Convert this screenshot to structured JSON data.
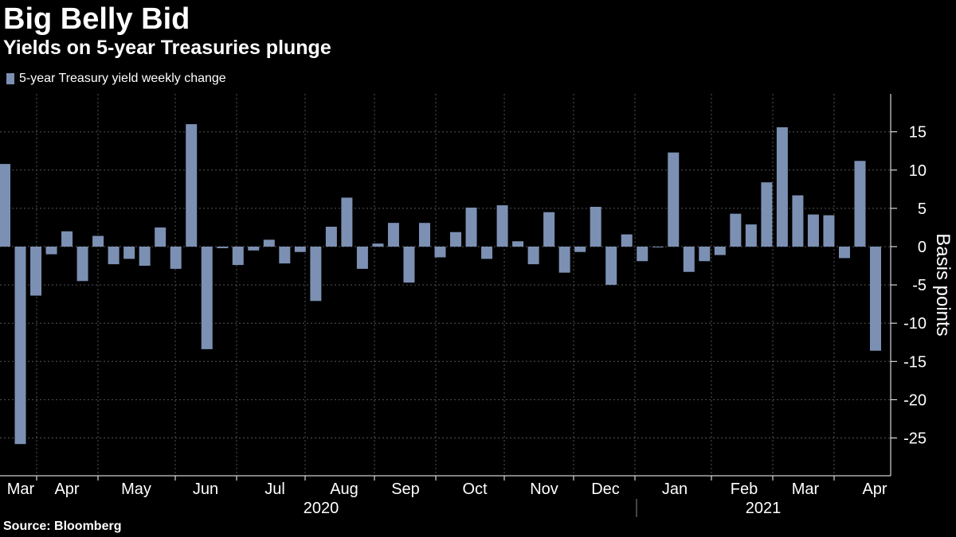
{
  "title": "Big Belly Bid",
  "subtitle": "Yields on 5-year Treasuries plunge",
  "source": "Source: Bloomberg",
  "colors": {
    "bar": "#7c90b3",
    "grid": "#555555",
    "background": "#000000"
  },
  "chart_data": {
    "type": "bar",
    "title": "Big Belly Bid",
    "subtitle": "Yields on 5-year Treasuries plunge",
    "legend": [
      "5-year Treasury yield weekly change"
    ],
    "legend_position": "top-left",
    "ylabel": "Basis points",
    "ylim": [
      -30,
      20
    ],
    "yticks": [
      15,
      10,
      5,
      0,
      -5,
      -10,
      -15,
      -20,
      -25
    ],
    "grid": true,
    "series": [
      {
        "name": "5-year Treasury yield weekly change",
        "values": [
          10.8,
          -25.8,
          -6.4,
          -1,
          2,
          -4.5,
          1.4,
          -2.3,
          -1.6,
          -2.5,
          2.5,
          -2.9,
          16,
          -13.4,
          -0.2,
          -2.4,
          -0.5,
          0.9,
          -2.2,
          -0.7,
          -7.1,
          2.6,
          6.4,
          -2.9,
          0.4,
          3.1,
          -4.7,
          3.1,
          -1.4,
          1.9,
          5.1,
          -1.6,
          5.4,
          0.7,
          -2.3,
          4.5,
          -3.4,
          -0.7,
          5.2,
          -5,
          1.6,
          -1.9,
          -0.1,
          12.3,
          -3.3,
          -1.9,
          -1.1,
          4.3,
          2.9,
          8.4,
          15.6,
          6.7,
          4.2,
          4.1,
          -1.5,
          11.2,
          -13.6
        ]
      }
    ],
    "month_labels": [
      "Mar",
      "Apr",
      "May",
      "Jun",
      "Jul",
      "Aug",
      "Sep",
      "Oct",
      "Nov",
      "Dec",
      "Jan",
      "Feb",
      "Mar",
      "Apr"
    ],
    "year_labels": [
      "2020",
      "2021"
    ]
  }
}
